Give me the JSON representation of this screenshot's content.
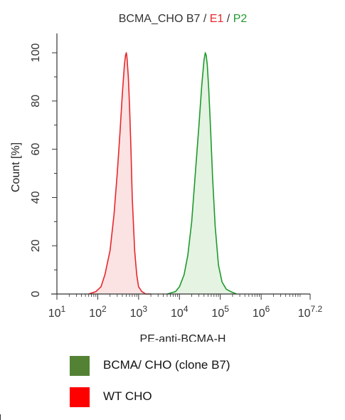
{
  "chart_data": {
    "type": "area",
    "title_parts": [
      {
        "text": "BCMA_CHO B7 / ",
        "color": "#333333"
      },
      {
        "text": "E1",
        "color": "#e8262b"
      },
      {
        "text": " / ",
        "color": "#333333"
      },
      {
        "text": "P2",
        "color": "#1e9a2c"
      }
    ],
    "xlabel": "PE-anti-BCMA-H",
    "ylabel": "Count [%]",
    "x_scale": "log10",
    "xlim": [
      10,
      15848931.92
    ],
    "ylim": [
      0,
      108
    ],
    "x_ticks": [
      {
        "base": "10",
        "exp": "1",
        "value": 10
      },
      {
        "base": "10",
        "exp": "2",
        "value": 100
      },
      {
        "base": "10",
        "exp": "3",
        "value": 1000
      },
      {
        "base": "10",
        "exp": "4",
        "value": 10000
      },
      {
        "base": "10",
        "exp": "5",
        "value": 100000
      },
      {
        "base": "10",
        "exp": "6",
        "value": 1000000
      },
      {
        "base": "10",
        "exp": "7.2",
        "value": 15848931.92
      }
    ],
    "y_ticks": [
      "0",
      "20",
      "40",
      "60",
      "80",
      "100"
    ],
    "grid": false,
    "series": [
      {
        "name": "WT CHO",
        "line_color": "#e8262b",
        "fill_color": "#fbe3e3",
        "x": [
          60,
          90,
          120,
          150,
          200,
          250,
          300,
          350,
          400,
          450,
          480,
          500,
          520,
          560,
          600,
          650,
          700,
          800,
          900,
          1000,
          1200,
          1500,
          2000
        ],
        "y": [
          0,
          1,
          3,
          8,
          18,
          33,
          50,
          67,
          83,
          95,
          99,
          100,
          98,
          90,
          78,
          60,
          40,
          18,
          8,
          3,
          1,
          0,
          0
        ]
      },
      {
        "name": "BCMA/ CHO (clone B7)",
        "line_color": "#1e9a2c",
        "fill_color": "#e4f3e2",
        "x": [
          5000,
          8000,
          10000,
          13000,
          16000,
          20000,
          25000,
          30000,
          35000,
          40000,
          43000,
          45000,
          48000,
          52000,
          58000,
          65000,
          75000,
          90000,
          110000,
          140000,
          180000,
          250000
        ],
        "y": [
          0,
          1,
          3,
          8,
          16,
          30,
          52,
          70,
          86,
          97,
          100,
          99,
          95,
          85,
          68,
          48,
          28,
          12,
          5,
          2,
          1,
          0
        ]
      }
    ]
  },
  "legend": [
    {
      "label": "BCMA/ CHO (clone B7)",
      "color": "#548235"
    },
    {
      "label": "WT CHO",
      "color": "#ff0000"
    }
  ]
}
